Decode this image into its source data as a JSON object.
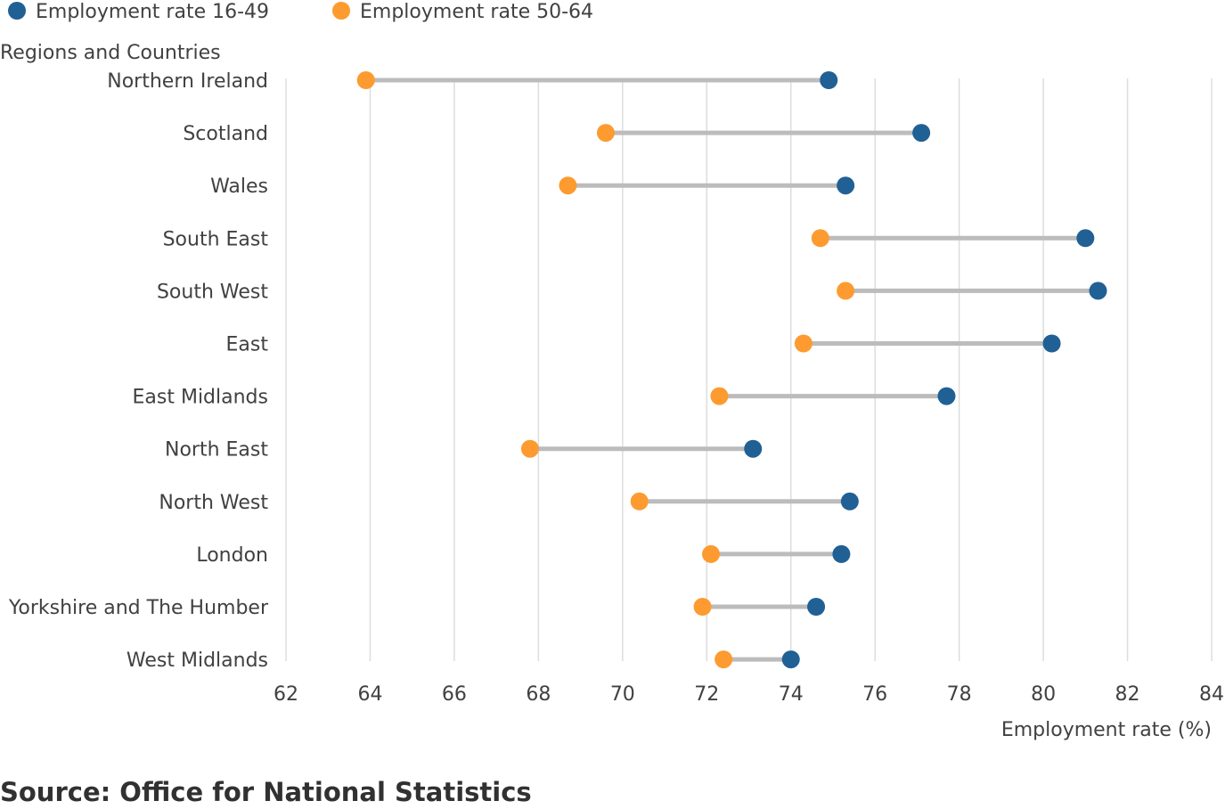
{
  "chart_data": {
    "type": "dumbbell",
    "ylabel": "Regions and Countries",
    "xlabel": "Employment rate (%)",
    "xlim": [
      62,
      84
    ],
    "xticks": [
      62,
      64,
      66,
      68,
      70,
      72,
      74,
      76,
      78,
      80,
      82,
      84
    ],
    "grid": "vertical",
    "legend_position": "top-left",
    "categories": [
      "Northern Ireland",
      "Scotland",
      "Wales",
      "South East",
      "South West",
      "East",
      "East Midlands",
      "North East",
      "North West",
      "London",
      "Yorkshire and The Humber",
      "West Midlands"
    ],
    "series": [
      {
        "name": "Employment rate 16-49",
        "color": "#206095",
        "values": [
          74.9,
          77.1,
          75.3,
          81.0,
          81.3,
          80.2,
          77.7,
          73.1,
          75.4,
          75.2,
          74.6,
          74.0
        ]
      },
      {
        "name": "Employment rate 50-64",
        "color": "#fd9b30",
        "values": [
          63.9,
          69.6,
          68.7,
          74.7,
          75.3,
          74.3,
          72.3,
          67.8,
          70.4,
          72.1,
          71.9,
          72.4
        ]
      }
    ],
    "connector_color": "#bcbcbc",
    "grid_color": "#dddddd"
  },
  "footer": {
    "source": "Source: Office for National Statistics"
  }
}
